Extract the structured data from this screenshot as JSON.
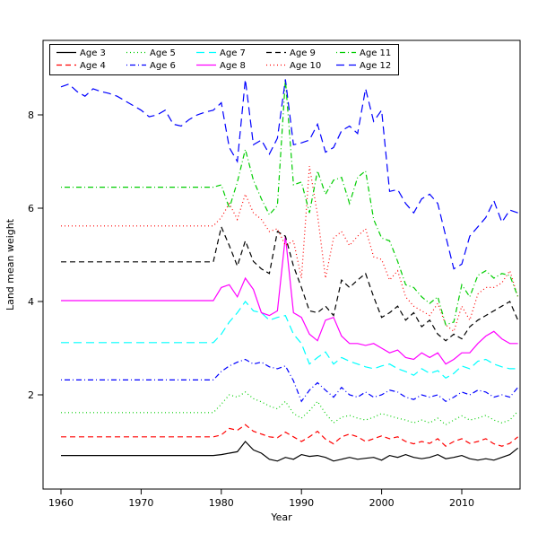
{
  "figure": {
    "background": "#ffffff"
  },
  "chart_data": {
    "type": "line",
    "title": "",
    "xlabel": "Year",
    "ylabel": "Land mean weight",
    "x_ticks": [
      1960,
      1970,
      1980,
      1990,
      2000,
      2010
    ],
    "y_ticks": [
      2,
      4,
      6,
      8
    ],
    "xlim": [
      1957.8,
      2019.3
    ],
    "ylim": [
      0,
      9.6
    ],
    "grid": false,
    "legend_position": "top-inside-box",
    "legend_rows": 2,
    "years": [
      1960,
      1961,
      1962,
      1963,
      1964,
      1965,
      1966,
      1967,
      1968,
      1969,
      1970,
      1971,
      1972,
      1973,
      1974,
      1975,
      1976,
      1977,
      1978,
      1979,
      1980,
      1981,
      1982,
      1983,
      1984,
      1985,
      1986,
      1987,
      1988,
      1989,
      1990,
      1991,
      1992,
      1993,
      1994,
      1995,
      1996,
      1997,
      1998,
      1999,
      2000,
      2001,
      2002,
      2003,
      2004,
      2005,
      2006,
      2007,
      2008,
      2009,
      2010,
      2011,
      2012,
      2013,
      2014,
      2015,
      2016,
      2017
    ],
    "series": [
      {
        "name": "Age 3",
        "color": "#000000",
        "dash": "",
        "values": [
          0.7,
          0.7,
          0.7,
          0.7,
          0.7,
          0.7,
          0.7,
          0.7,
          0.7,
          0.7,
          0.7,
          0.7,
          0.7,
          0.7,
          0.7,
          0.7,
          0.7,
          0.7,
          0.7,
          0.7,
          0.72,
          0.75,
          0.78,
          1.0,
          0.82,
          0.75,
          0.62,
          0.58,
          0.66,
          0.62,
          0.72,
          0.68,
          0.7,
          0.66,
          0.58,
          0.62,
          0.66,
          0.62,
          0.64,
          0.66,
          0.6,
          0.7,
          0.66,
          0.72,
          0.66,
          0.63,
          0.66,
          0.72,
          0.63,
          0.66,
          0.7,
          0.63,
          0.6,
          0.63,
          0.6,
          0.66,
          0.72,
          0.86
        ]
      },
      {
        "name": "Age 4",
        "color": "#ff0000",
        "dash": "6,4",
        "values": [
          1.1,
          1.1,
          1.1,
          1.1,
          1.1,
          1.1,
          1.1,
          1.1,
          1.1,
          1.1,
          1.1,
          1.1,
          1.1,
          1.1,
          1.1,
          1.1,
          1.1,
          1.1,
          1.1,
          1.1,
          1.14,
          1.28,
          1.24,
          1.36,
          1.22,
          1.16,
          1.1,
          1.08,
          1.2,
          1.1,
          1.0,
          1.1,
          1.22,
          1.05,
          0.95,
          1.1,
          1.16,
          1.1,
          1.0,
          1.06,
          1.12,
          1.06,
          1.1,
          1.0,
          0.95,
          1.0,
          0.96,
          1.06,
          0.9,
          1.0,
          1.06,
          0.96,
          1.0,
          1.06,
          0.95,
          0.9,
          0.96,
          1.1
        ]
      },
      {
        "name": "Age 5",
        "color": "#00cd00",
        "dash": "1,3",
        "values": [
          1.62,
          1.62,
          1.62,
          1.62,
          1.62,
          1.62,
          1.62,
          1.62,
          1.62,
          1.62,
          1.62,
          1.62,
          1.62,
          1.62,
          1.62,
          1.62,
          1.62,
          1.62,
          1.62,
          1.62,
          1.8,
          2.0,
          1.95,
          2.06,
          1.92,
          1.85,
          1.76,
          1.7,
          1.86,
          1.6,
          1.5,
          1.66,
          1.86,
          1.6,
          1.4,
          1.52,
          1.56,
          1.5,
          1.46,
          1.52,
          1.6,
          1.55,
          1.5,
          1.46,
          1.4,
          1.46,
          1.4,
          1.5,
          1.36,
          1.46,
          1.55,
          1.46,
          1.5,
          1.56,
          1.46,
          1.4,
          1.46,
          1.65
        ]
      },
      {
        "name": "Age 6",
        "color": "#0000ff",
        "dash": "1,3,6,3",
        "values": [
          2.32,
          2.32,
          2.32,
          2.32,
          2.32,
          2.32,
          2.32,
          2.32,
          2.32,
          2.32,
          2.32,
          2.32,
          2.32,
          2.32,
          2.32,
          2.32,
          2.32,
          2.32,
          2.32,
          2.32,
          2.5,
          2.62,
          2.7,
          2.76,
          2.66,
          2.7,
          2.6,
          2.56,
          2.62,
          2.3,
          1.86,
          2.1,
          2.26,
          2.1,
          1.95,
          2.16,
          2.0,
          1.95,
          2.06,
          1.95,
          2.0,
          2.1,
          2.06,
          1.95,
          1.9,
          2.0,
          1.95,
          2.0,
          1.86,
          1.95,
          2.06,
          2.0,
          2.1,
          2.06,
          1.95,
          2.0,
          1.95,
          2.16
        ]
      },
      {
        "name": "Age 7",
        "color": "#00ffff",
        "dash": "9,5",
        "values": [
          3.12,
          3.12,
          3.12,
          3.12,
          3.12,
          3.12,
          3.12,
          3.12,
          3.12,
          3.12,
          3.12,
          3.12,
          3.12,
          3.12,
          3.12,
          3.12,
          3.12,
          3.12,
          3.12,
          3.12,
          3.3,
          3.56,
          3.76,
          4.0,
          3.8,
          3.76,
          3.6,
          3.66,
          3.7,
          3.3,
          3.1,
          2.66,
          2.8,
          2.92,
          2.66,
          2.8,
          2.72,
          2.66,
          2.6,
          2.56,
          2.62,
          2.66,
          2.56,
          2.5,
          2.42,
          2.56,
          2.46,
          2.52,
          2.36,
          2.46,
          2.62,
          2.56,
          2.72,
          2.76,
          2.66,
          2.6,
          2.56,
          2.56
        ]
      },
      {
        "name": "Age 8",
        "color": "#ff00ff",
        "dash": "",
        "values": [
          4.02,
          4.02,
          4.02,
          4.02,
          4.02,
          4.02,
          4.02,
          4.02,
          4.02,
          4.02,
          4.02,
          4.02,
          4.02,
          4.02,
          4.02,
          4.02,
          4.02,
          4.02,
          4.02,
          4.02,
          4.3,
          4.36,
          4.1,
          4.5,
          4.26,
          3.76,
          3.7,
          3.8,
          5.4,
          3.76,
          3.66,
          3.3,
          3.16,
          3.6,
          3.66,
          3.26,
          3.1,
          3.1,
          3.06,
          3.1,
          3.0,
          2.9,
          2.96,
          2.8,
          2.76,
          2.9,
          2.8,
          2.9,
          2.66,
          2.76,
          2.9,
          2.9,
          3.1,
          3.26,
          3.36,
          3.2,
          3.1,
          3.1
        ]
      },
      {
        "name": "Age 9",
        "color": "#000000",
        "dash": "6,4",
        "values": [
          4.85,
          4.85,
          4.85,
          4.85,
          4.85,
          4.85,
          4.85,
          4.85,
          4.85,
          4.85,
          4.85,
          4.85,
          4.85,
          4.85,
          4.85,
          4.85,
          4.85,
          4.85,
          4.85,
          4.85,
          5.6,
          5.2,
          4.76,
          5.3,
          4.86,
          4.7,
          4.6,
          5.5,
          5.4,
          4.76,
          4.3,
          3.8,
          3.76,
          3.9,
          3.7,
          4.46,
          4.3,
          4.46,
          4.6,
          4.1,
          3.66,
          3.76,
          3.9,
          3.6,
          3.76,
          3.46,
          3.6,
          3.3,
          3.16,
          3.3,
          3.2,
          3.46,
          3.6,
          3.7,
          3.8,
          3.9,
          4.0,
          3.6
        ]
      },
      {
        "name": "Age 10",
        "color": "#ff0000",
        "dash": "1,3",
        "values": [
          5.62,
          5.62,
          5.62,
          5.62,
          5.62,
          5.62,
          5.62,
          5.62,
          5.62,
          5.62,
          5.62,
          5.62,
          5.62,
          5.62,
          5.62,
          5.62,
          5.62,
          5.62,
          5.62,
          5.62,
          5.8,
          6.1,
          5.76,
          6.3,
          5.9,
          5.76,
          5.5,
          5.56,
          5.2,
          5.3,
          4.5,
          6.9,
          5.86,
          4.5,
          5.36,
          5.5,
          5.2,
          5.4,
          5.56,
          4.96,
          4.9,
          4.46,
          4.66,
          4.1,
          3.9,
          3.8,
          3.7,
          3.96,
          3.5,
          3.36,
          3.9,
          3.6,
          4.16,
          4.3,
          4.3,
          4.4,
          4.66,
          4.1
        ]
      },
      {
        "name": "Age 11",
        "color": "#00cd00",
        "dash": "1,3,6,3",
        "values": [
          6.45,
          6.45,
          6.45,
          6.45,
          6.45,
          6.45,
          6.45,
          6.45,
          6.45,
          6.45,
          6.45,
          6.45,
          6.45,
          6.45,
          6.45,
          6.45,
          6.45,
          6.45,
          6.45,
          6.45,
          6.5,
          6.0,
          6.56,
          7.26,
          6.6,
          6.2,
          5.86,
          6.06,
          8.76,
          6.5,
          6.56,
          5.9,
          6.8,
          6.3,
          6.6,
          6.66,
          6.1,
          6.66,
          6.8,
          5.76,
          5.36,
          5.3,
          4.86,
          4.36,
          4.3,
          4.1,
          3.96,
          4.1,
          3.5,
          3.56,
          4.36,
          4.1,
          4.56,
          4.66,
          4.5,
          4.6,
          4.56,
          4.1
        ]
      },
      {
        "name": "Age 12",
        "color": "#0000ff",
        "dash": "9,5",
        "values": [
          8.6,
          8.66,
          8.5,
          8.4,
          8.56,
          8.5,
          8.46,
          8.4,
          8.3,
          8.2,
          8.1,
          7.96,
          8.0,
          8.1,
          7.8,
          7.76,
          7.9,
          8.0,
          8.06,
          8.1,
          8.26,
          7.3,
          7.0,
          8.76,
          7.36,
          7.46,
          7.16,
          7.5,
          8.76,
          7.36,
          7.4,
          7.46,
          7.8,
          7.2,
          7.3,
          7.66,
          7.76,
          7.6,
          8.56,
          7.86,
          8.1,
          6.36,
          6.4,
          6.1,
          5.9,
          6.2,
          6.3,
          6.1,
          5.4,
          4.7,
          4.8,
          5.4,
          5.6,
          5.8,
          6.16,
          5.7,
          5.96,
          5.9
        ]
      }
    ]
  }
}
